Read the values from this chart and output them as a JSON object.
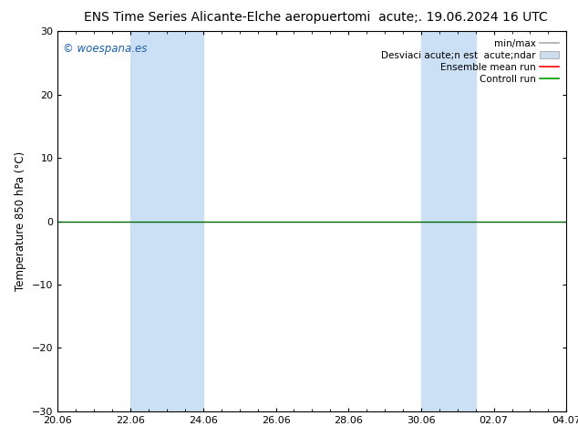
{
  "title": "ENS Time Series Alicante-Elche aeropuerto",
  "subtitle": "mi  acute;. 19.06.2024 16 UTC",
  "ylabel": "Temperature 850 hPa (°C)",
  "xlabel": "",
  "ylim": [
    -30,
    30
  ],
  "yticks": [
    -30,
    -20,
    -10,
    0,
    10,
    20,
    30
  ],
  "xtick_labels": [
    "20.06",
    "22.06",
    "24.06",
    "26.06",
    "28.06",
    "30.06",
    "02.07",
    "04.07"
  ],
  "xtick_positions": [
    0,
    2,
    4,
    6,
    8,
    10,
    12,
    14
  ],
  "x_total": 14,
  "shaded_regions": [
    {
      "xmin": 2,
      "xmax": 4,
      "color": "#cce0f5"
    },
    {
      "xmin": 10,
      "xmax": 11.5,
      "color": "#cce0f5"
    }
  ],
  "hline_y": 0,
  "hline_color": "#006600",
  "watermark": "© woespana.es",
  "background_color": "#ffffff",
  "plot_bg_color": "#ffffff",
  "border_color": "#000000",
  "title_fontsize": 10,
  "subtitle_fontsize": 10,
  "tick_fontsize": 8,
  "label_fontsize": 8.5,
  "watermark_color": "#1a5fa8",
  "watermark_fontsize": 8.5,
  "legend_fontsize": 7.5,
  "legend_labels": [
    "min/max",
    "Desviaci acute;n est  acute;ndar",
    "Ensemble mean run",
    "Controll run"
  ],
  "legend_colors": [
    "#aaaaaa",
    "#ccddee",
    "#ff0000",
    "#009900"
  ],
  "legend_styles": [
    "line",
    "patch",
    "line",
    "line"
  ]
}
